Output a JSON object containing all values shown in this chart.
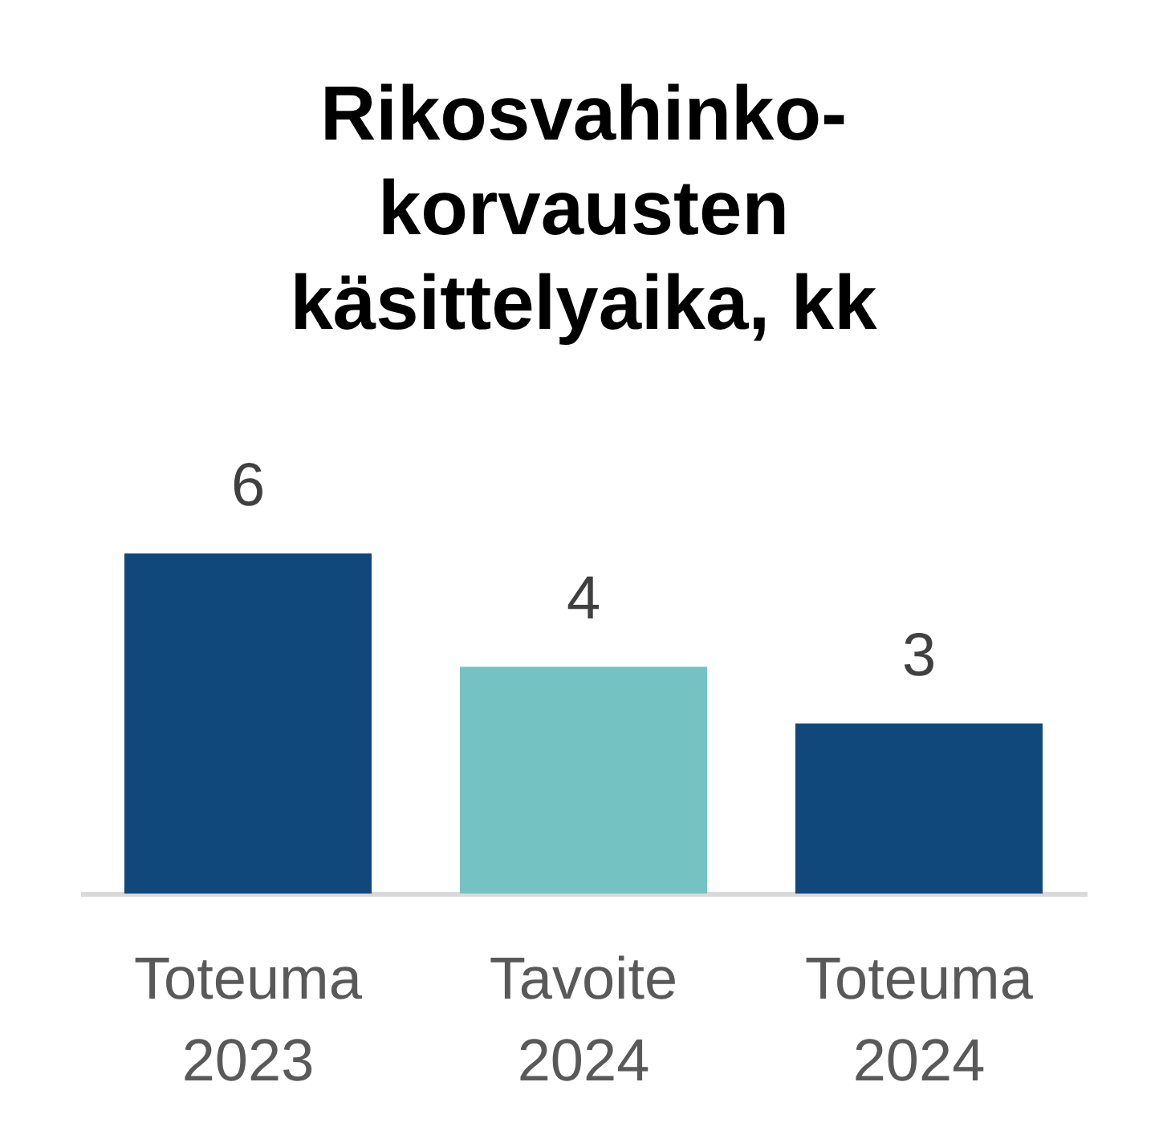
{
  "chart_data": {
    "type": "bar",
    "title": "Rikosvahinko-korvausten käsittelyaika, kk",
    "categories": [
      "Toteuma 2023",
      "Tavoite 2024",
      "Toteuma 2024"
    ],
    "values": [
      6,
      4,
      3
    ],
    "colors": [
      "#10487c",
      "#74c3c2",
      "#10487c"
    ],
    "data_labels": true,
    "tick_labels": "x"
  }
}
